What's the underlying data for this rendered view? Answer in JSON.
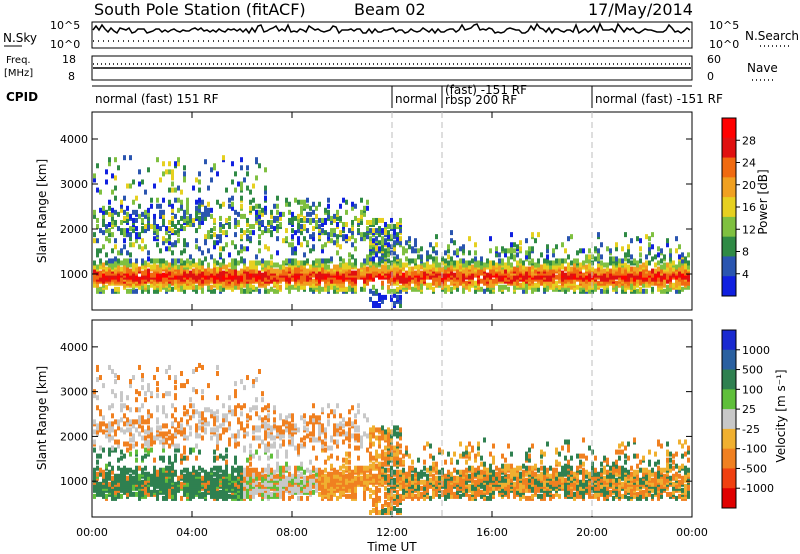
{
  "header": {
    "title": "South Pole Station (fitACF)",
    "beam": "Beam 02",
    "date": "17/May/2014"
  },
  "top_panels": {
    "nsky_label": "N.Sky",
    "nsky_ticks": [
      "10^5",
      "10^0"
    ],
    "nsearch_label": "N.Search",
    "nsearch_ticks": [
      "10^5",
      "10^0"
    ],
    "freq_label_line1": "Freq.",
    "freq_label_line2": "[MHz]",
    "freq_ticks": [
      "18",
      "8"
    ],
    "nave_label": "Nave",
    "nave_ticks": [
      "60",
      "0"
    ],
    "cpid_label": "CPID"
  },
  "cpid_segments": [
    {
      "label": "normal (fast) 151 RF",
      "label2": "",
      "start_hour": 0
    },
    {
      "label": "normal",
      "label2": "",
      "start_hour": 12
    },
    {
      "label": "(fast) -151 RF",
      "label2": "rbsp 200 RF",
      "start_hour": 14
    },
    {
      "label": "normal (fast) -151 RF",
      "label2": "",
      "start_hour": 20
    }
  ],
  "colors": {
    "power": [
      "#1020e0",
      "#2a55b0",
      "#2f8a45",
      "#7fc040",
      "#e6d020",
      "#f0a020",
      "#f06a10",
      "#e01010",
      "#ff0000"
    ],
    "velocity": [
      "#1a2ad0",
      "#2a60a0",
      "#2f8050",
      "#5fbf3a",
      "#c8c8c8",
      "#f0b030",
      "#f08020",
      "#f04010",
      "#e00000"
    ]
  },
  "chart_data": [
    {
      "type": "heatmap",
      "title": "",
      "ylabel": "Slant Range [km]",
      "xlabel": "",
      "xlim_hours": [
        0,
        24
      ],
      "ylim": [
        200,
        4600
      ],
      "y_ticks": [
        "1000",
        "2000",
        "3000",
        "4000"
      ],
      "x_ticks": [],
      "dashed_hours": [
        12,
        14,
        20
      ],
      "colorbar": {
        "label": "Power [dB]",
        "ticks": [
          "4",
          "8",
          "12",
          "16",
          "20",
          "24",
          "28"
        ]
      }
    },
    {
      "type": "heatmap",
      "title": "",
      "ylabel": "Slant Range [km]",
      "xlabel": "Time UT",
      "xlim_hours": [
        0,
        24
      ],
      "ylim": [
        200,
        4600
      ],
      "y_ticks": [
        "1000",
        "2000",
        "3000",
        "4000"
      ],
      "x_ticks": [
        "00:00",
        "04:00",
        "08:00",
        "12:00",
        "16:00",
        "20:00",
        "00:00"
      ],
      "dashed_hours": [
        12,
        14,
        20
      ],
      "colorbar": {
        "label": "Velocity [m s⁻¹]",
        "ticks": [
          "1000",
          "500",
          "100",
          "25",
          "-25",
          "-100",
          "-500",
          "-1000"
        ]
      }
    }
  ]
}
